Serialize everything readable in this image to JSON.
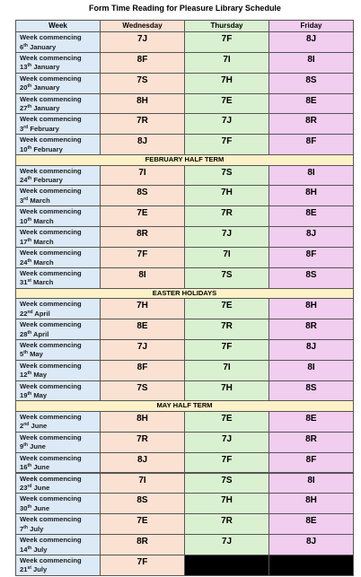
{
  "title": "Form Time Reading for Pleasure Library Schedule",
  "table": {
    "headers": [
      "Week",
      "Wednesday",
      "Thursday",
      "Friday"
    ],
    "rows": [
      {
        "week": "Week commencing",
        "day": "6",
        "suffix": "th",
        "month": "January",
        "cells": [
          "7J",
          "7F",
          "8J"
        ]
      },
      {
        "week": "Week commencing",
        "day": "13",
        "suffix": "th",
        "month": "January",
        "cells": [
          "8F",
          "7I",
          "8I"
        ]
      },
      {
        "week": "Week commencing",
        "day": "20",
        "suffix": "th",
        "month": "January",
        "cells": [
          "7S",
          "7H",
          "8S"
        ]
      },
      {
        "week": "Week commencing",
        "day": "27",
        "suffix": "th",
        "month": "January",
        "cells": [
          "8H",
          "7E",
          "8E"
        ]
      },
      {
        "week": "Week commencing",
        "day": "3",
        "suffix": "rd",
        "month": "February",
        "cells": [
          "7R",
          "7J",
          "8R"
        ]
      },
      {
        "week": "Week commencing",
        "day": "10",
        "suffix": "th",
        "month": "February",
        "cells": [
          "8J",
          "7F",
          "8F"
        ]
      },
      {
        "section": "FEBRUARY HALF TERM"
      },
      {
        "week": "Week commencing",
        "day": "24",
        "suffix": "th",
        "month": "February",
        "cells": [
          "7I",
          "7S",
          "8I"
        ]
      },
      {
        "week": "Week commencing",
        "day": "3",
        "suffix": "rd",
        "month": "March",
        "cells": [
          "8S",
          "7H",
          "8H"
        ]
      },
      {
        "week": "Week commencing",
        "day": "10",
        "suffix": "th",
        "month": "March",
        "cells": [
          "7E",
          "7R",
          "8E"
        ]
      },
      {
        "week": "Week commencing",
        "day": "17",
        "suffix": "th",
        "month": "March",
        "cells": [
          "8R",
          "7J",
          "8J"
        ]
      },
      {
        "week": "Week commencing",
        "day": "24",
        "suffix": "th",
        "month": "March",
        "cells": [
          "7F",
          "7I",
          "8F"
        ]
      },
      {
        "week": "Week commencing",
        "day": "31",
        "suffix": "st",
        "month": "March",
        "cells": [
          "8I",
          "7S",
          "8S"
        ]
      },
      {
        "section": "EASTER HOLIDAYS"
      },
      {
        "week": "Week commencing",
        "day": "22",
        "suffix": "nd",
        "month": "April",
        "cells": [
          "7H",
          "7E",
          "8H"
        ]
      },
      {
        "week": "Week commencing",
        "day": "28",
        "suffix": "th",
        "month": "April",
        "cells": [
          "8E",
          "7R",
          "8R"
        ]
      },
      {
        "week": "Week commencing",
        "day": "5",
        "suffix": "th",
        "month": "May",
        "cells": [
          "7J",
          "7F",
          "8J"
        ]
      },
      {
        "week": "Week commencing",
        "day": "12",
        "suffix": "th",
        "month": "May",
        "cells": [
          "8F",
          "7I",
          "8I"
        ]
      },
      {
        "week": "Week commencing",
        "day": "19",
        "suffix": "th",
        "month": "May",
        "cells": [
          "7S",
          "7H",
          "8S"
        ]
      },
      {
        "section": "MAY HALF TERM"
      },
      {
        "week": "Week commencing",
        "day": "2",
        "suffix": "nd",
        "month": "June",
        "cells": [
          "8H",
          "7E",
          "8E"
        ]
      },
      {
        "week": "Week commencing",
        "day": "9",
        "suffix": "th",
        "month": "June",
        "cells": [
          "7R",
          "7J",
          "8R"
        ]
      },
      {
        "week": "Week commencing",
        "day": "16",
        "suffix": "th",
        "month": "June",
        "cells": [
          "8J",
          "7F",
          "8F"
        ]
      },
      {
        "week": "Week commencing",
        "day": "23",
        "suffix": "rd",
        "month": "June",
        "cells": [
          "7I",
          "7S",
          "8I"
        ]
      },
      {
        "week": "Week commencing",
        "day": "30",
        "suffix": "th",
        "month": "June",
        "cells": [
          "8S",
          "7H",
          "8H"
        ]
      },
      {
        "week": "Week commencing",
        "day": "7",
        "suffix": "th",
        "month": "July",
        "cells": [
          "7E",
          "7R",
          "8E"
        ]
      },
      {
        "week": "Week commencing",
        "day": "14",
        "suffix": "th",
        "month": "July",
        "cells": [
          "8R",
          "7J",
          "8J"
        ]
      },
      {
        "week": "Week commencing",
        "day": "21",
        "suffix": "st",
        "month": "July",
        "cells": [
          "7F"
        ]
      }
    ]
  }
}
